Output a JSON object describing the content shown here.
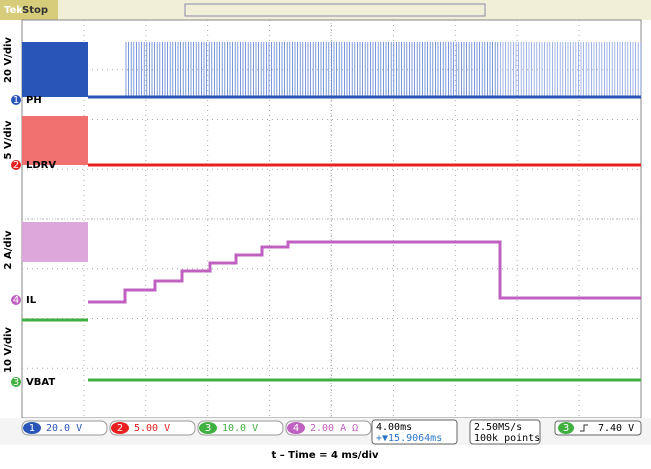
{
  "header": {
    "brand": "Tek",
    "state": "Stop",
    "trigger_marker": "T"
  },
  "channels": [
    {
      "number": "1",
      "label": "PH",
      "scale_axis": "20 V/div",
      "readout": "20.0 V"
    },
    {
      "number": "2",
      "label": "LDRV",
      "scale_axis": "5 V/div",
      "readout": "5.00 V"
    },
    {
      "number": "3",
      "label": "VBAT",
      "scale_axis": "10 V/div",
      "readout": "10.0 V"
    },
    {
      "number": "4",
      "label": "IL",
      "scale_axis": "2 A/div",
      "readout": "2.00 A Ω"
    }
  ],
  "timebase": {
    "scale": "4.00ms",
    "position": "+▼15.9064ms",
    "rate": "2.50MS/s",
    "points": "100k points"
  },
  "trigger": {
    "channel": "3",
    "level": "7.40 V"
  },
  "caption": "t – Time = 4 ms/div"
}
